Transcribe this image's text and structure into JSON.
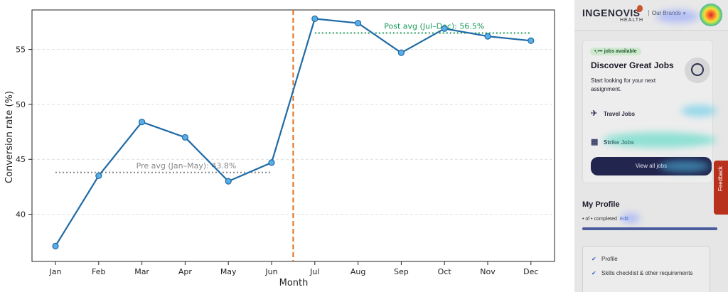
{
  "chart_data": {
    "type": "line",
    "title": "",
    "xlabel": "Month",
    "ylabel": "Conversion rate (%)",
    "categories": [
      "Jan",
      "Feb",
      "Mar",
      "Apr",
      "May",
      "Jun",
      "Jul",
      "Aug",
      "Sep",
      "Oct",
      "Nov",
      "Dec"
    ],
    "series": [
      {
        "name": "",
        "values": [
          37.1,
          43.5,
          48.4,
          47.0,
          43.0,
          44.7,
          57.8,
          57.4,
          54.7,
          56.9,
          56.2,
          55.8
        ],
        "color": "#1f6aa5",
        "marker_color": "#5aaee6"
      }
    ],
    "ylim": [
      35.7,
      58.6
    ],
    "yticks": [
      40,
      45,
      50,
      55
    ],
    "grid": "horizontal dashed",
    "reference_lines": [
      {
        "label": "Pre avg (Jan–May): 43.8%",
        "value": 43.8,
        "from": "Jan",
        "to": "Jun",
        "color": "#888888",
        "style": "dotted"
      },
      {
        "label": "Post avg (Jul–Dec): 56.5%",
        "value": 56.5,
        "from": "Jul",
        "to": "Dec",
        "color": "#1a9a5a",
        "style": "dotted"
      }
    ],
    "vertical_marker": {
      "between": [
        "Jun",
        "Jul"
      ],
      "color": "#e07020",
      "style": "dashed"
    }
  },
  "side_panel": {
    "logo": "INGENOVIS",
    "logo_sub": "HEALTH",
    "brands": "Our Brands",
    "jobs_pill": "•,••• jobs available",
    "card_title": "Discover Great Jobs",
    "card_sub": "Start looking for your next assignment.",
    "travel_jobs": "Travel Jobs",
    "strike_jobs": "Strike Jobs",
    "view_all": "View all jobs",
    "feedback": "Feedback",
    "profile_title": "My Profile",
    "completed": "• of • completed",
    "edit": "Edit",
    "checklist": [
      "Profile",
      "Skills checklist & other requirements"
    ],
    "colors": {
      "accent": "#22254d",
      "feedback": "#b8311c"
    }
  }
}
